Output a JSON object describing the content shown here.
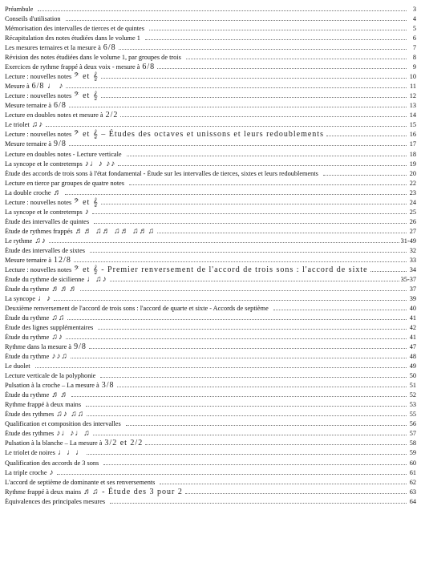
{
  "entries": [
    {
      "title": "Préambule",
      "music": "",
      "page": "3"
    },
    {
      "title": "Conseils d'utilisation",
      "music": "",
      "page": "4"
    },
    {
      "title": "Mémorisation des intervalles de tierces et de quintes",
      "music": "",
      "page": "5"
    },
    {
      "title": "Récapitulation des notes étudiées dans le volume 1",
      "music": "",
      "page": "6"
    },
    {
      "title": "Les mesures ternaires et la mesure à",
      "music": "6/8",
      "page": "7"
    },
    {
      "title": "Révision des notes étudiées dans le volume 1, par groupes de trois",
      "music": "",
      "page": "8"
    },
    {
      "title": "Exercices de rythme frappé à deux voix - mesure à",
      "music": "6/8",
      "page": "9"
    },
    {
      "title": "Lecture : nouvelles notes",
      "music": "𝄢 et 𝄞",
      "page": "10"
    },
    {
      "title": "Mesure à",
      "music": "6/8 ♩ ♪",
      "page": "11"
    },
    {
      "title": "Lecture : nouvelles notes",
      "music": "𝄢 et 𝄞",
      "page": "12"
    },
    {
      "title": "Mesure ternaire à",
      "music": "6/8",
      "page": "13"
    },
    {
      "title": "Lecture en doubles notes et mesure à",
      "music": "2/2",
      "page": "14"
    },
    {
      "title": "Le triolet",
      "music": "♫♪",
      "page": "15"
    },
    {
      "title": "Lecture : nouvelles notes",
      "music": "𝄢 et 𝄞 – Études des octaves et unissons et leurs redoublements",
      "page": "16"
    },
    {
      "title": "Mesure ternaire à",
      "music": "9/8",
      "page": "17"
    },
    {
      "title": "Lecture en doubles notes - Lecture verticale",
      "music": "",
      "page": "18"
    },
    {
      "title": "La syncope et le contretemps",
      "music": "♪♩♪  ♪♪",
      "page": "19"
    },
    {
      "title": "Étude des accords de trois sons à l'état fondamental - Étude sur les intervalles de tierces, sixtes et leurs redoublements",
      "music": "",
      "page": "20"
    },
    {
      "title": "Lecture en tierce par groupes de quatre notes",
      "music": "",
      "page": "22"
    },
    {
      "title": "La double croche",
      "music": "♬",
      "page": "23"
    },
    {
      "title": "Lecture : nouvelles notes",
      "music": "𝄢 et 𝄞",
      "page": "24"
    },
    {
      "title": "La syncope et le contretemps",
      "music": "♪",
      "page": "25"
    },
    {
      "title": "Étude des intervalles de quintes",
      "music": "",
      "page": "26"
    },
    {
      "title": "Étude de rythmes frappés",
      "music": "♬♬  ♫♬  ♫♬  ♫♬♫",
      "page": "27"
    },
    {
      "title": "Le rythme",
      "music": "♫♪",
      "page": "31-49"
    },
    {
      "title": "Étude des intervalles de sixtes",
      "music": "",
      "page": "32"
    },
    {
      "title": "Mesure ternaire à",
      "music": "12/8",
      "page": "33"
    },
    {
      "title": "Lecture : nouvelles notes",
      "music": "𝄢 et 𝄞 - Premier renversement de l'accord de trois sons : l'accord de sixte",
      "page": "34"
    },
    {
      "title": "Étude du rythme de sicilienne",
      "music": "♩♫♪",
      "page": "35-37"
    },
    {
      "title": "Étude du rythme",
      "music": "♬♬♬",
      "page": "37"
    },
    {
      "title": "La syncope",
      "music": "♩♪",
      "page": "39"
    },
    {
      "title": "Deuxième renversement de l'accord de trois sons : l'accord de quarte et sixte - Accords de septième",
      "music": "",
      "page": "40"
    },
    {
      "title": "Étude du rythme",
      "music": "♫♫",
      "page": "41"
    },
    {
      "title": "Étude des lignes supplémentaires",
      "music": "",
      "page": "42"
    },
    {
      "title": "Étude du rythme",
      "music": "♫♪",
      "page": "41"
    },
    {
      "title": "Rythme dans la mesure à",
      "music": "9/8",
      "page": "47"
    },
    {
      "title": "Étude du rythme",
      "music": "♪♪♫",
      "page": "48"
    },
    {
      "title": "Le duolet",
      "music": "",
      "page": "49"
    },
    {
      "title": "Lecture verticale de la polyphonie",
      "music": "",
      "page": "50"
    },
    {
      "title": "Pulsation à la croche – La mesure à",
      "music": "3/8",
      "page": "51"
    },
    {
      "title": "Étude du rythme",
      "music": "♬♬",
      "page": "52"
    },
    {
      "title": "Rythme frappé à deux mains",
      "music": "",
      "page": "53"
    },
    {
      "title": "Étude des rythmes",
      "music": "♫♪  ♫♫",
      "page": "55"
    },
    {
      "title": "Qualification et composition des intervalles",
      "music": "",
      "page": "56"
    },
    {
      "title": "Étude des rythmes",
      "music": "♪♩♪♩♫",
      "page": "57"
    },
    {
      "title": "Pulsation à la blanche – La mesure à",
      "music": "3/2 et 2/2",
      "page": "58"
    },
    {
      "title": "Le triolet de noires",
      "music": "♩♩♩",
      "page": "59"
    },
    {
      "title": "Qualification des accords de 3 sons",
      "music": "",
      "page": "60"
    },
    {
      "title": "La triple croche",
      "music": "♪",
      "page": "61"
    },
    {
      "title": "L'accord de septième de dominante et ses renversements",
      "music": "",
      "page": "62"
    },
    {
      "title": "Rythme frappé à deux mains",
      "music": "♬♫ - Étude des 3 pour 2",
      "page": "63"
    },
    {
      "title": "Équivalences des principales mesures",
      "music": "",
      "page": "64"
    }
  ]
}
